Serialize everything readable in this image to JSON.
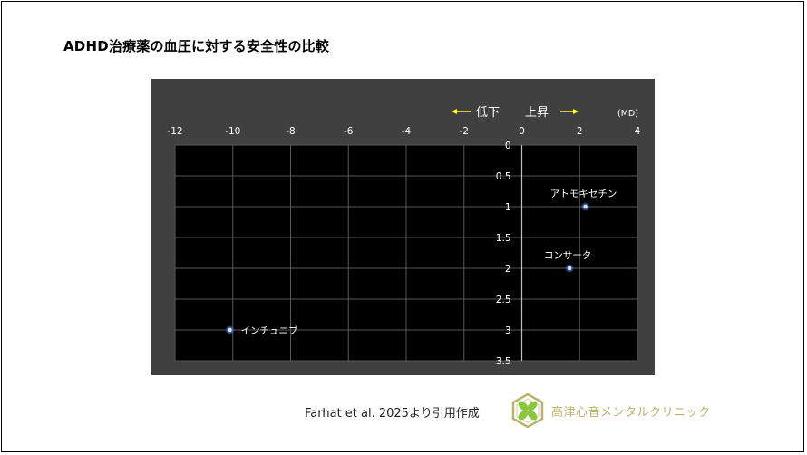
{
  "page": {
    "title": "ADHD治療薬の血圧に対する安全性の比較",
    "source": "Farhat et al. 2025より引用作成",
    "clinic_name": "高津心音メンタルクリニック"
  },
  "colors": {
    "frame_bg": "#404040",
    "plot_bg": "#000000",
    "grid": "#595959",
    "axis_text": "#ffffff",
    "arrow": "#ffff00",
    "point": "#4a78c8",
    "clinic": "#b9b46a"
  },
  "chart_data": {
    "type": "scatter",
    "title": "",
    "xlabel": "",
    "ylabel": "",
    "xlim": [
      -12,
      4
    ],
    "ylim": [
      0,
      3.5
    ],
    "y_inverted": true,
    "x_axis_position": "top",
    "x_ticks": [
      -12,
      -10,
      -8,
      -6,
      -4,
      -2,
      0,
      2,
      4
    ],
    "y_ticks": [
      "0",
      "0.5",
      "1",
      "1.5",
      "2",
      "2.5",
      "3",
      "3.5"
    ],
    "x_unit": "(MD)",
    "direction_left": "低下",
    "direction_right": "上昇",
    "grid": true,
    "points": [
      {
        "label": "アトモキセチン",
        "x": 2.2,
        "y": 1
      },
      {
        "label": "コンサータ",
        "x": 1.65,
        "y": 2
      },
      {
        "label": "インチュニブ",
        "x": -10.1,
        "y": 3
      }
    ]
  }
}
